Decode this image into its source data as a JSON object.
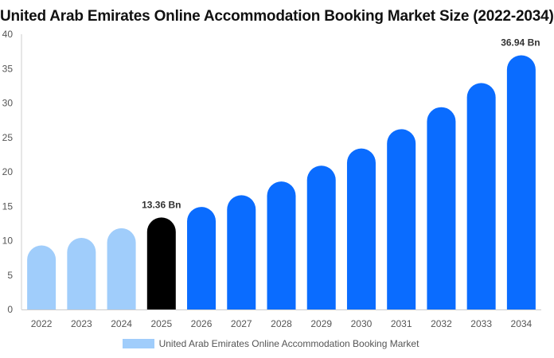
{
  "chart_data": {
    "type": "bar",
    "title": "United Arab Emirates Online Accommodation Booking Market Size (2022-2034)",
    "categories": [
      "2022",
      "2023",
      "2024",
      "2025",
      "2026",
      "2027",
      "2028",
      "2029",
      "2030",
      "2031",
      "2032",
      "2033",
      "2034"
    ],
    "series": [
      {
        "name": "United Arab Emirates Online Accommodation Booking Market",
        "values": [
          9.3,
          10.4,
          11.8,
          13.36,
          14.9,
          16.6,
          18.6,
          20.9,
          23.4,
          26.2,
          29.4,
          32.9,
          36.94
        ]
      }
    ],
    "data_labels": {
      "3": "13.36 Bn",
      "12": "36.94 Bn"
    },
    "ylim": [
      0,
      40
    ],
    "yticks": [
      0,
      5,
      10,
      15,
      20,
      25,
      30,
      35,
      40
    ],
    "colors": {
      "historical": "#a0cdfb",
      "current": "#000000",
      "forecast": "#0a6cff",
      "axis": "#cccccc"
    },
    "legend": {
      "position": "bottom",
      "label": "United Arab Emirates Online Accommodation Booking Market",
      "color": "#a0cdfb"
    },
    "grid": false
  }
}
